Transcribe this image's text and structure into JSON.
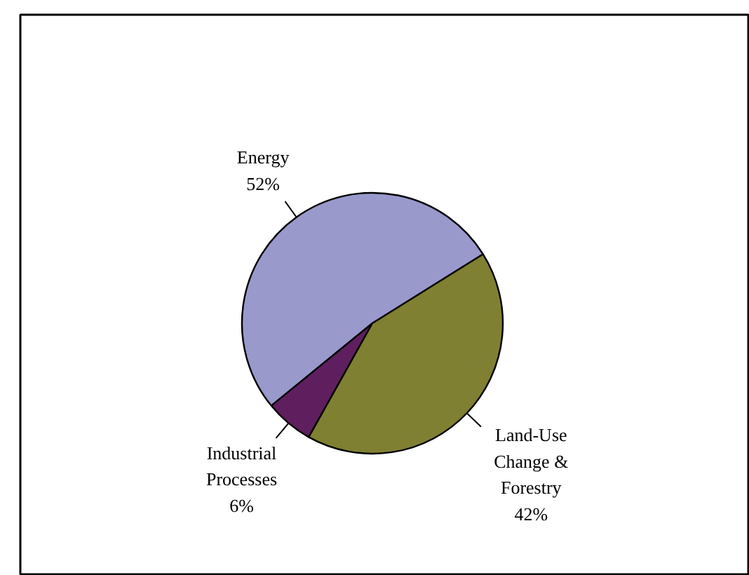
{
  "chart_data": {
    "type": "pie",
    "categories": [
      "Energy",
      "Industrial\nProcesses",
      "Land-Use\nChange &\nForestry"
    ],
    "values": [
      52,
      6,
      42
    ],
    "value_labels": [
      "52%",
      "6%",
      "42%"
    ],
    "colors": [
      "#9999cc",
      "#5f1f5f",
      "#808033"
    ]
  }
}
